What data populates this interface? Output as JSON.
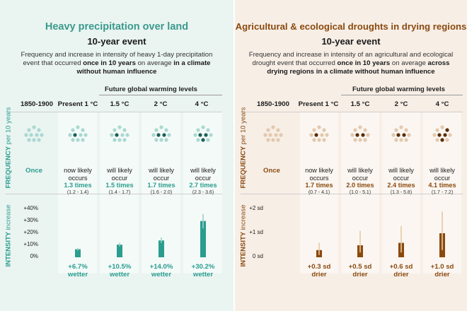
{
  "left": {
    "title": "Heavy precipitation over land",
    "subtitle": "10-year event",
    "description_parts": [
      {
        "t": "Frequency and increase in intensity of heavy 1-day precipitation event that occurred ",
        "b": false
      },
      {
        "t": "once in 10 years",
        "b": true
      },
      {
        "t": " on average ",
        "b": false
      },
      {
        "t": "in a climate without human influence",
        "b": true
      }
    ],
    "future_label": "Future global warming levels",
    "columns": [
      "1850-1900",
      "Present 1 °C",
      "1.5 °C",
      "2 °C",
      "4 °C"
    ],
    "axis_frequency": "FREQUENCY",
    "axis_frequency_small": "per 10 years",
    "axis_intensity": "INTENSITY",
    "axis_intensity_small": "increase",
    "baseline_freq": "Once",
    "freq": [
      {
        "l1": "now likely",
        "l2": "occurs",
        "val": "1.3 times",
        "rng": "(1.2 - 1.4)"
      },
      {
        "l1": "will likely",
        "l2": "occur",
        "val": "1.5 times",
        "rng": "(1.4 - 1.7)"
      },
      {
        "l1": "will likely",
        "l2": "occur",
        "val": "1.7 times",
        "rng": "(1.6 - 2.0)"
      },
      {
        "l1": "will likely",
        "l2": "occur",
        "val": "2.7 times",
        "rng": "(2.3 - 3.6)"
      }
    ],
    "yticks": [
      "+40%",
      "+30%",
      "+20%",
      "+10%",
      "0%"
    ],
    "intensity": [
      {
        "v1": "+6.7%",
        "v2": "wetter"
      },
      {
        "v1": "+10.5%",
        "v2": "wetter"
      },
      {
        "v1": "+14.0%",
        "v2": "wetter"
      },
      {
        "v1": "+30.2%",
        "v2": "wetter"
      }
    ],
    "colors": {
      "accent": "#2a9d8f",
      "dark": "#1f5f57",
      "light": "#a9d9d1",
      "title": "#3a9a8c",
      "col_bg": "#dcefeb"
    }
  },
  "right": {
    "title": "Agricultural & ecological droughts in drying regions",
    "subtitle": "10-year event",
    "description_parts": [
      {
        "t": "Frequency and increase in intensity of an agricultural and ecological drought event that occurred ",
        "b": false
      },
      {
        "t": "once in 10 years",
        "b": true
      },
      {
        "t": " on average ",
        "b": false
      },
      {
        "t": "across drying regions in a climate without human influence",
        "b": true
      }
    ],
    "future_label": "Future global warming levels",
    "columns": [
      "1850-1900",
      "Present 1 °C",
      "1.5 °C",
      "2 °C",
      "4 °C"
    ],
    "axis_frequency": "FREQUENCY",
    "axis_frequency_small": "per 10 years",
    "axis_intensity": "INTENSITY",
    "axis_intensity_small": "increase",
    "baseline_freq": "Once",
    "freq": [
      {
        "l1": "now likely",
        "l2": "occurs",
        "val": "1.7 times",
        "rng": "(0.7 - 4.1)"
      },
      {
        "l1": "will likely",
        "l2": "occur",
        "val": "2.0 times",
        "rng": "(1.0 - 5.1)"
      },
      {
        "l1": "will likely",
        "l2": "occur",
        "val": "2.4 times",
        "rng": "(1.3 - 5.8)"
      },
      {
        "l1": "will likely",
        "l2": "occur",
        "val": "4.1 times",
        "rng": "(1.7 - 7.2)"
      }
    ],
    "yticks": [
      "+2 sd",
      "+1 sd",
      "0 sd"
    ],
    "intensity": [
      {
        "v1": "+0.3 sd",
        "v2": "drier"
      },
      {
        "v1": "+0.5 sd",
        "v2": "drier"
      },
      {
        "v1": "+0.6 sd",
        "v2": "drier"
      },
      {
        "v1": "+1.0 sd",
        "v2": "drier"
      }
    ],
    "colors": {
      "accent": "#8a4a0f",
      "dark": "#5a2e08",
      "light": "#e2c9ae",
      "title": "#8a4a0f",
      "col_bg": "#f1e4d8"
    }
  }
}
